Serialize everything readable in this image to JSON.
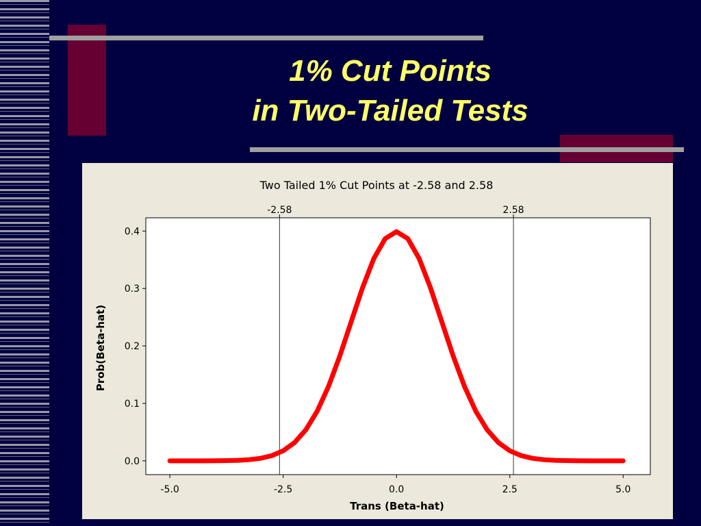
{
  "slide": {
    "title_lines": [
      "1% Cut Points",
      "in Two-Tailed Tests"
    ]
  },
  "chart_data": {
    "type": "line",
    "title": "Two Tailed 1% Cut Points at -2.58 and 2.58",
    "x_label": "Trans (Beta-hat)",
    "y_label": "Prob(Beta-hat)",
    "x": [
      -5,
      -4.75,
      -4.5,
      -4.25,
      -4,
      -3.75,
      -3.5,
      -3.25,
      -3,
      -2.75,
      -2.5,
      -2.25,
      -2,
      -1.75,
      -1.5,
      -1.25,
      -1,
      -0.75,
      -0.5,
      -0.25,
      0,
      0.25,
      0.5,
      0.75,
      1,
      1.25,
      1.5,
      1.75,
      2,
      2.25,
      2.5,
      2.75,
      3,
      3.25,
      3.5,
      3.75,
      4,
      4.25,
      4.5,
      4.75,
      5
    ],
    "series": [
      {
        "color": "#ff0000",
        "values": [
          0,
          0,
          0,
          0,
          0.0001,
          0.0004,
          0.0009,
          0.002,
          0.0044,
          0.0091,
          0.0175,
          0.0317,
          0.054,
          0.0863,
          0.1295,
          0.1826,
          0.242,
          0.3011,
          0.3521,
          0.3867,
          0.3989,
          0.3867,
          0.3521,
          0.3011,
          0.242,
          0.1826,
          0.1295,
          0.0863,
          0.054,
          0.0317,
          0.0175,
          0.0091,
          0.0044,
          0.002,
          0.0009,
          0.0004,
          0.0001,
          0,
          0,
          0,
          0
        ]
      }
    ],
    "vlines": [
      -2.58,
      2.58
    ],
    "xlim": [
      -5.53,
      5.6
    ],
    "ylim": [
      -0.024,
      0.423
    ],
    "xticks": [
      {
        "value": -5,
        "label": "-5.0"
      },
      -2.5,
      {
        "value": 0,
        "label": "0.0"
      },
      2.5,
      {
        "value": 5,
        "label": "5.0"
      }
    ],
    "yticks": [
      {
        "value": 0,
        "label": "0.0"
      },
      0.1,
      0.2,
      0.3,
      0.4
    ]
  }
}
